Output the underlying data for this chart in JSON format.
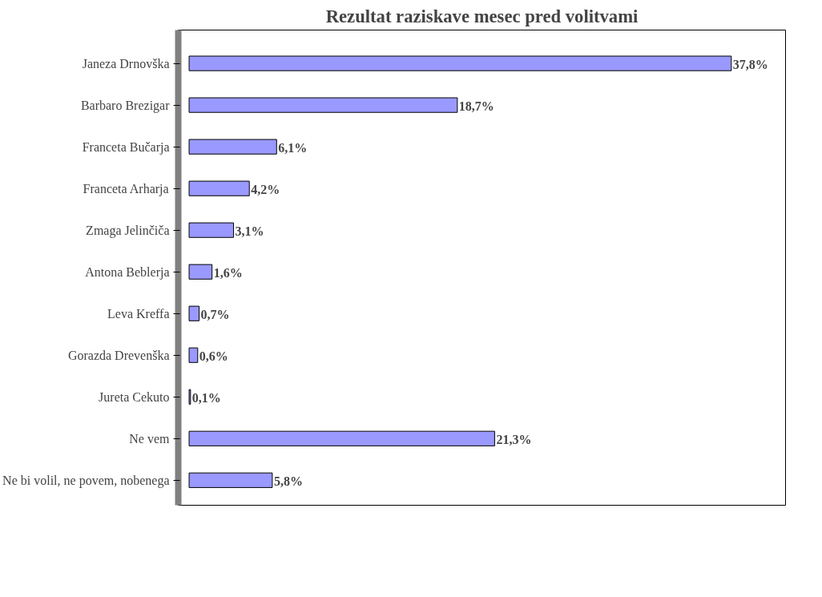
{
  "chart_data": {
    "type": "bar",
    "orientation": "horizontal",
    "title": "Rezultat raziskave mesec pred volitvami",
    "categories": [
      "Janeza Drnovška",
      "Barbaro Brezigar",
      "Franceta Bučarja",
      "Franceta Arharja",
      "Zmaga Jelinčiča",
      "Antona Beblerja",
      "Leva Kreffa",
      "Gorazda Drevenška",
      "Jureta Cekuto",
      "Ne vem",
      "Ne bi volil, ne povem, nobenega"
    ],
    "values": [
      37.8,
      18.7,
      6.1,
      4.2,
      3.1,
      1.6,
      0.7,
      0.6,
      0.1,
      21.3,
      5.8
    ],
    "value_labels": [
      "37,8%",
      "18,7%",
      "6,1%",
      "4,2%",
      "3,1%",
      "1,6%",
      "0,7%",
      "0,6%",
      "0,1%",
      "21,3%",
      "5,8%"
    ],
    "color": "#9999ff",
    "grid": false
  }
}
